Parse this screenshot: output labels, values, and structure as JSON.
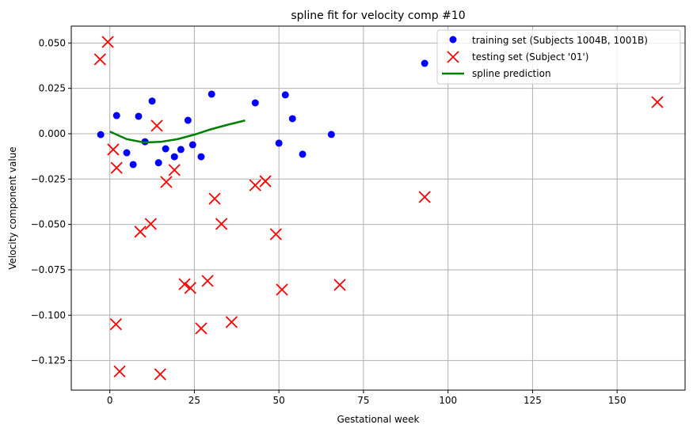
{
  "chart_data": {
    "type": "scatter",
    "title": "spline fit for velocity comp #10",
    "xlabel": "Gestational week",
    "ylabel": "Velocity component value",
    "xlim": [
      -11.4,
      170.1
    ],
    "ylim": [
      -0.1413,
      0.0593
    ],
    "xticks": [
      0,
      25,
      50,
      75,
      100,
      125,
      150
    ],
    "xtick_labels": [
      "0",
      "25",
      "50",
      "75",
      "100",
      "125",
      "150"
    ],
    "yticks": [
      0.05,
      0.025,
      0,
      -0.025,
      -0.05,
      -0.075,
      -0.1,
      -0.125
    ],
    "ytick_labels": [
      "0.050",
      "0.025",
      "0.000",
      "−0.025",
      "−0.050",
      "−0.075",
      "−0.100",
      "−0.125"
    ],
    "grid": true,
    "legend_position": "top-right",
    "series": [
      {
        "name": "training set (Subjects 1004B, 1001B)",
        "kind": "scatter-dot",
        "color": "#0000ff",
        "x": [
          -2.7,
          2.0,
          5.0,
          6.9,
          8.5,
          10.4,
          12.5,
          14.4,
          16.5,
          19.1,
          21.0,
          23.1,
          24.5,
          27.0,
          30.1,
          43.0,
          50.0,
          51.9,
          54.0,
          57.0,
          65.5,
          93.1
        ],
        "y": [
          -0.0005,
          0.01,
          -0.0105,
          -0.017,
          0.0096,
          -0.0044,
          0.018,
          -0.016,
          -0.0083,
          -0.0127,
          -0.0087,
          0.0074,
          -0.0061,
          -0.0127,
          0.0218,
          0.017,
          -0.0052,
          0.0214,
          0.0083,
          -0.0113,
          -0.0004,
          0.0388
        ]
      },
      {
        "name": "testing set (Subject '01')",
        "kind": "scatter-x",
        "color": "#ff0000",
        "x": [
          -2.9,
          -0.6,
          1.0,
          2.0,
          13.9,
          16.7,
          19.1,
          9.0,
          12.1,
          31.0,
          33.0,
          43.0,
          46.0,
          49.1,
          22.1,
          23.8,
          28.9,
          50.9,
          68.0,
          93.1,
          161.9,
          1.8,
          2.9,
          14.9,
          27.0,
          36.0
        ],
        "y": [
          0.041,
          0.0506,
          -0.0087,
          -0.0188,
          0.0044,
          -0.0266,
          -0.02,
          -0.054,
          -0.0497,
          -0.0358,
          -0.0497,
          -0.0284,
          -0.0262,
          -0.0554,
          -0.0829,
          -0.085,
          -0.0811,
          -0.0859,
          -0.0833,
          -0.0349,
          0.0174,
          -0.105,
          -0.131,
          -0.1326,
          -0.1073,
          -0.1038
        ]
      },
      {
        "name": "spline prediction",
        "kind": "line",
        "color": "#008000",
        "x": [
          0,
          5,
          10,
          15,
          20,
          25,
          30,
          35,
          40
        ],
        "y": [
          0.0012,
          -0.003,
          -0.0048,
          -0.0045,
          -0.003,
          -0.0005,
          0.0025,
          0.005,
          0.0073
        ]
      }
    ]
  }
}
